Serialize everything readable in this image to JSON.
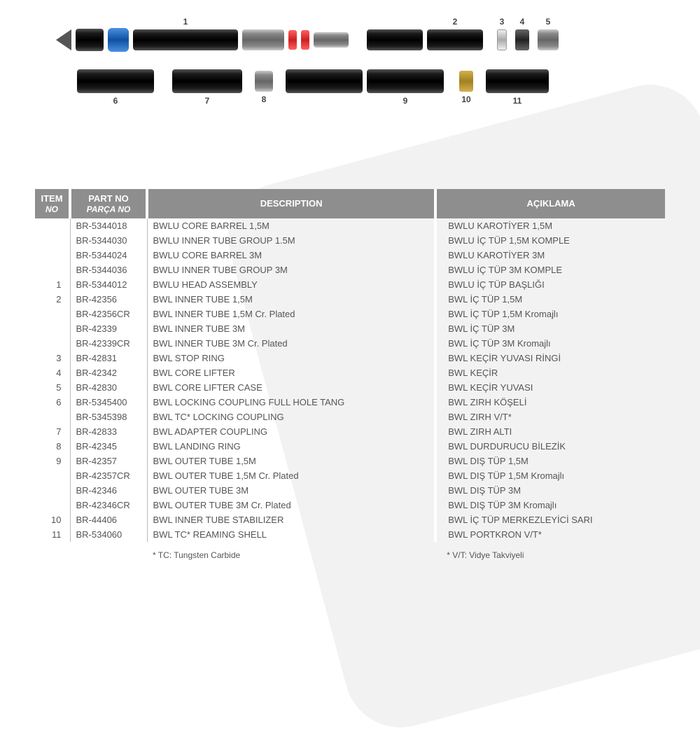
{
  "diagram": {
    "labels_top": [
      "1",
      "2",
      "3",
      "4",
      "5"
    ],
    "labels_bottom": [
      "6",
      "7",
      "8",
      "9",
      "10",
      "11"
    ]
  },
  "table": {
    "headers": {
      "item_no": "ITEM",
      "item_no_sub": "NO",
      "part_no": "PART NO",
      "part_no_sub": "PARÇA NO",
      "description": "DESCRIPTION",
      "aciklama": "AÇIKLAMA"
    },
    "rows": [
      {
        "item": "",
        "part": "BR-5344018",
        "desc": "BWLU CORE BARREL 1,5M",
        "tr": "BWLU KAROTİYER 1,5M"
      },
      {
        "item": "",
        "part": "BR-5344030",
        "desc": "BWLU INNER TUBE GROUP 1.5M",
        "tr": "BWLU İÇ TÜP 1,5M KOMPLE"
      },
      {
        "item": "",
        "part": "BR-5344024",
        "desc": "BWLU CORE BARREL 3M",
        "tr": "BWLU KAROTİYER 3M"
      },
      {
        "item": "",
        "part": "BR-5344036",
        "desc": "BWLU INNER TUBE GROUP 3M",
        "tr": "BWLU İÇ TÜP 3M KOMPLE"
      },
      {
        "item": "1",
        "part": "BR-5344012",
        "desc": "BWLU HEAD ASSEMBLY",
        "tr": "BWLU İÇ TÜP BAŞLIĞI"
      },
      {
        "item": "2",
        "part": "BR-42356",
        "desc": "BWL INNER TUBE 1,5M",
        "tr": "BWL İÇ TÜP 1,5M"
      },
      {
        "item": "",
        "part": "BR-42356CR",
        "desc": "BWL INNER TUBE 1,5M Cr. Plated",
        "tr": "BWL İÇ TÜP 1,5M Kromajlı"
      },
      {
        "item": "",
        "part": "BR-42339",
        "desc": "BWL INNER TUBE 3M",
        "tr": "BWL İÇ TÜP 3M"
      },
      {
        "item": "",
        "part": "BR-42339CR",
        "desc": "BWL INNER TUBE 3M Cr. Plated",
        "tr": "BWL İÇ TÜP 3M Kromajlı"
      },
      {
        "item": "3",
        "part": "BR-42831",
        "desc": "BWL STOP RING",
        "tr": "BWL KEÇİR YUVASI RİNGİ"
      },
      {
        "item": "4",
        "part": "BR-42342",
        "desc": "BWL CORE LIFTER",
        "tr": "BWL KEÇİR"
      },
      {
        "item": "5",
        "part": "BR-42830",
        "desc": "BWL CORE LIFTER CASE",
        "tr": "BWL KEÇİR YUVASI"
      },
      {
        "item": "6",
        "part": "BR-5345400",
        "desc": "BWL LOCKING COUPLING FULL HOLE TANG",
        "tr": "BWL ZIRH KÖŞELİ"
      },
      {
        "item": "",
        "part": "BR-5345398",
        "desc": "BWL TC* LOCKING COUPLING",
        "tr": "BWL ZIRH V/T*"
      },
      {
        "item": "7",
        "part": "BR-42833",
        "desc": "BWL ADAPTER COUPLING",
        "tr": "BWL ZIRH ALTI"
      },
      {
        "item": "8",
        "part": "BR-42345",
        "desc": "BWL LANDING RING",
        "tr": "BWL DURDURUCU BİLEZİK"
      },
      {
        "item": "9",
        "part": "BR-42357",
        "desc": "BWL OUTER TUBE 1,5M",
        "tr": "BWL DIŞ TÜP 1,5M"
      },
      {
        "item": "",
        "part": "BR-42357CR",
        "desc": "BWL OUTER TUBE 1,5M Cr. Plated",
        "tr": "BWL DIŞ TÜP 1,5M Kromajlı"
      },
      {
        "item": "",
        "part": "BR-42346",
        "desc": "BWL OUTER TUBE 3M",
        "tr": "BWL DIŞ TÜP 3M"
      },
      {
        "item": "",
        "part": "BR-42346CR",
        "desc": "BWL OUTER TUBE 3M Cr. Plated",
        "tr": "BWL DIŞ TÜP 3M Kromajlı"
      },
      {
        "item": "10",
        "part": "BR-44406",
        "desc": "BWL INNER TUBE STABILIZER",
        "tr": "BWL İÇ TÜP MERKEZLEYİCİ SARI"
      },
      {
        "item": "11",
        "part": "BR-534060",
        "desc": "BWL TC* REAMING SHELL",
        "tr": "BWL PORTKRON V/T*"
      }
    ],
    "footnote_left": "* TC: Tungsten Carbide",
    "footnote_right": "* V/T: Vidye Takviyeli"
  },
  "colors": {
    "header_bg": "#8e8e8e",
    "header_text": "#ffffff",
    "body_text": "#555555",
    "divider": "#bbbbbb",
    "bg_shape": "#f2f2f2",
    "tube_black": "#1a1a1a",
    "blue": "#1050a0",
    "red": "#cc2020",
    "brass": "#a08020"
  }
}
